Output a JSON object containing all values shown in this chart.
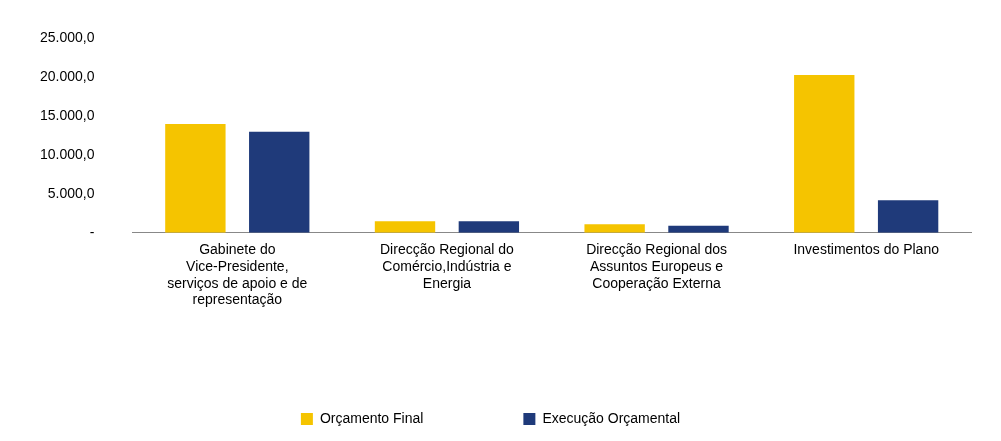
{
  "chart_data": {
    "type": "bar",
    "categories": [
      "Gabinete do Vice-Presidente, serviços de apoio e de representação",
      "Direcção Regional do Comércio,Indústria e Energia",
      "Direcção Regional dos Assuntos Europeus e Cooperação Externa",
      "Investimentos do Plano"
    ],
    "series": [
      {
        "name": "Orçamento Final",
        "color": "#f5c400",
        "values": [
          14000,
          1500,
          1100,
          20300
        ]
      },
      {
        "name": "Execução Orçamental",
        "color": "#1f3a7a",
        "values": [
          13000,
          1500,
          900,
          4200
        ]
      }
    ],
    "ylim": [
      0,
      25000
    ],
    "yticks": [
      {
        "value": 0,
        "label": "-"
      },
      {
        "value": 5000,
        "label": "5.000,0"
      },
      {
        "value": 10000,
        "label": "10.000,0"
      },
      {
        "value": 15000,
        "label": "15.000,0"
      },
      {
        "value": 20000,
        "label": "20.000,0"
      },
      {
        "value": 25000,
        "label": "25.000,0"
      }
    ],
    "grid": false,
    "legend": "bottom"
  }
}
